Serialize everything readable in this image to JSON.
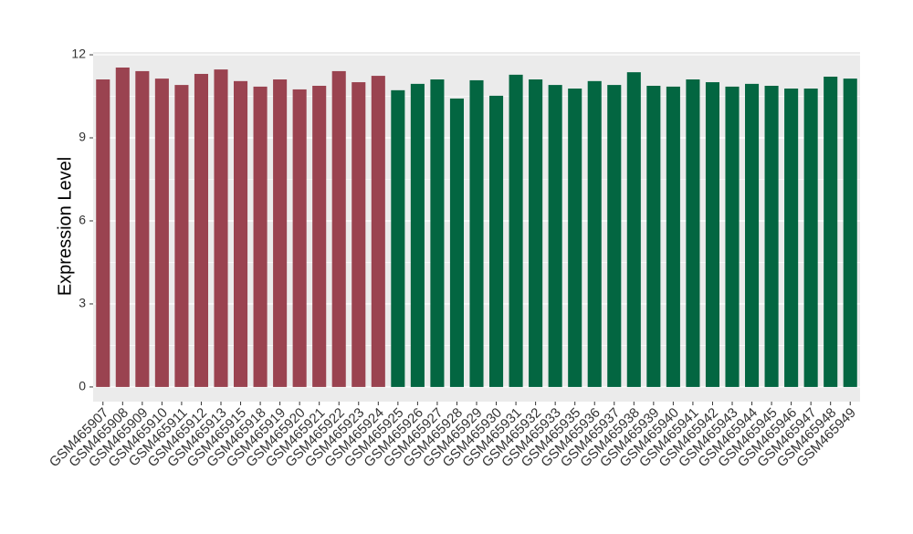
{
  "chart_data": {
    "type": "bar",
    "y_label": "Expression Level",
    "categories": [
      "GSM465907",
      "GSM465908",
      "GSM465909",
      "GSM465910",
      "GSM465911",
      "GSM465912",
      "GSM465913",
      "GSM465915",
      "GSM465918",
      "GSM465919",
      "GSM465920",
      "GSM465921",
      "GSM465922",
      "GSM465923",
      "GSM465924",
      "GSM465925",
      "GSM465926",
      "GSM465927",
      "GSM465928",
      "GSM465929",
      "GSM465930",
      "GSM465931",
      "GSM465932",
      "GSM465933",
      "GSM465935",
      "GSM465936",
      "GSM465937",
      "GSM465938",
      "GSM465939",
      "GSM465940",
      "GSM465941",
      "GSM465942",
      "GSM465943",
      "GSM465944",
      "GSM465945",
      "GSM465946",
      "GSM465947",
      "GSM465948",
      "GSM465949"
    ],
    "values": [
      11.11,
      11.54,
      11.41,
      11.14,
      10.91,
      11.31,
      11.47,
      11.05,
      10.85,
      11.11,
      10.75,
      10.88,
      11.41,
      11.01,
      11.24,
      10.72,
      10.95,
      11.11,
      10.42,
      11.08,
      10.52,
      11.28,
      11.11,
      10.91,
      10.78,
      11.05,
      10.91,
      11.37,
      10.88,
      10.85,
      11.11,
      11.01,
      10.85,
      10.95,
      10.88,
      10.78,
      10.78,
      11.21,
      11.14
    ],
    "colors": [
      "#9a4350",
      "#9a4350",
      "#9a4350",
      "#9a4350",
      "#9a4350",
      "#9a4350",
      "#9a4350",
      "#9a4350",
      "#9a4350",
      "#9a4350",
      "#9a4350",
      "#9a4350",
      "#9a4350",
      "#9a4350",
      "#9a4350",
      "#036641",
      "#036641",
      "#036641",
      "#036641",
      "#036641",
      "#036641",
      "#036641",
      "#036641",
      "#036641",
      "#036641",
      "#036641",
      "#036641",
      "#036641",
      "#036641",
      "#036641",
      "#036641",
      "#036641",
      "#036641",
      "#036641",
      "#036641",
      "#036641",
      "#036641",
      "#036641",
      "#036641"
    ],
    "ylim": [
      -0.53,
      12.1
    ],
    "yticks": [
      0,
      3,
      6,
      9,
      12
    ],
    "grid": true
  }
}
